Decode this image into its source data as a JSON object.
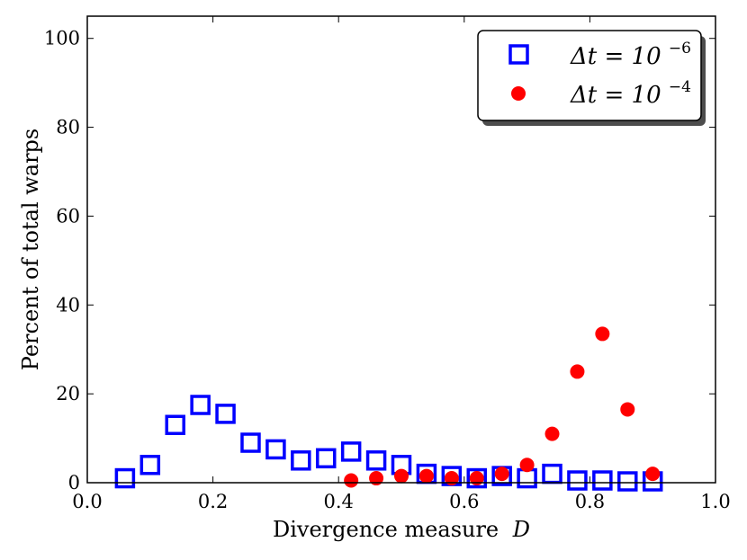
{
  "chart_data": {
    "type": "scatter",
    "xlabel": "Divergence measure",
    "xlabel_var": "D",
    "ylabel": "Percent of total warps",
    "xlim": [
      0.0,
      1.0
    ],
    "ylim": [
      0,
      105
    ],
    "xticks": [
      0.0,
      0.2,
      0.4,
      0.6,
      0.8,
      1.0
    ],
    "xtick_labels": [
      "0.0",
      "0.2",
      "0.4",
      "0.6",
      "0.8",
      "1.0"
    ],
    "yticks": [
      0,
      20,
      40,
      60,
      80,
      100
    ],
    "ytick_labels": [
      "0",
      "20",
      "40",
      "60",
      "80",
      "100"
    ],
    "legend_position": "top-right",
    "series": [
      {
        "name": "Δt = 10^-6",
        "legend_base": "Δt = 10",
        "legend_exp": "−6",
        "marker": "open-square",
        "color": "#0000ff",
        "x": [
          0.06,
          0.1,
          0.14,
          0.18,
          0.22,
          0.26,
          0.3,
          0.34,
          0.38,
          0.42,
          0.46,
          0.5,
          0.54,
          0.58,
          0.62,
          0.66,
          0.7,
          0.74,
          0.78,
          0.82,
          0.86,
          0.9
        ],
        "y": [
          1.0,
          4.0,
          13.0,
          17.5,
          15.5,
          9.0,
          7.5,
          5.0,
          5.5,
          7.0,
          5.0,
          4.0,
          2.0,
          1.5,
          1.0,
          1.5,
          1.0,
          2.0,
          0.5,
          0.5,
          0.3,
          0.3
        ]
      },
      {
        "name": "Δt = 10^-4",
        "legend_base": "Δt = 10",
        "legend_exp": "−4",
        "marker": "filled-circle",
        "color": "#ff0000",
        "x": [
          0.42,
          0.46,
          0.5,
          0.54,
          0.58,
          0.62,
          0.66,
          0.7,
          0.74,
          0.78,
          0.82,
          0.86,
          0.9
        ],
        "y": [
          0.5,
          1.0,
          1.5,
          1.5,
          1.0,
          1.0,
          2.0,
          4.0,
          11.0,
          25.0,
          33.5,
          16.5,
          2.0
        ]
      }
    ]
  }
}
